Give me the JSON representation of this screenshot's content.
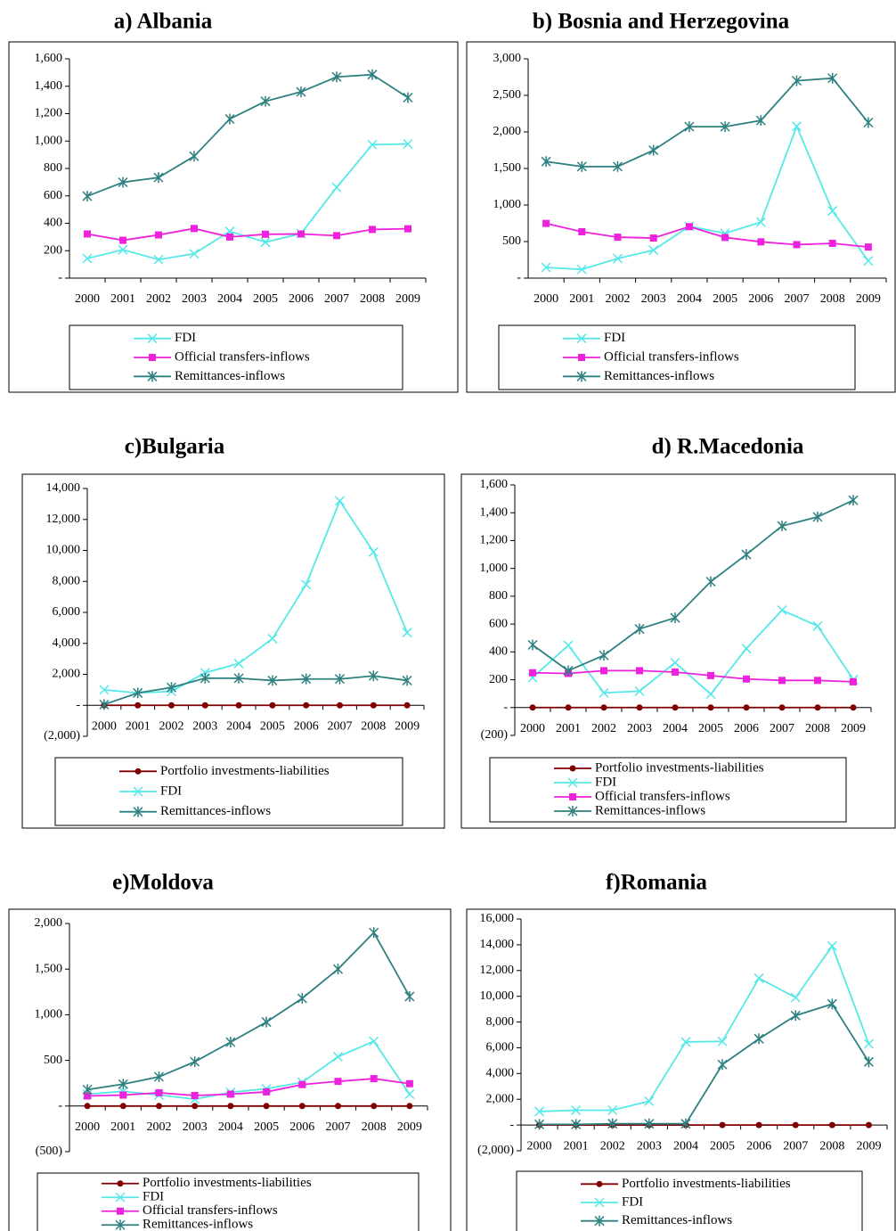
{
  "chart_data": [
    {
      "type": "line",
      "title": "a) Albania",
      "categories": [
        "2000",
        "2001",
        "2002",
        "2003",
        "2004",
        "2005",
        "2006",
        "2007",
        "2008",
        "2009"
      ],
      "ylim": [
        0,
        1600
      ],
      "yticks": [
        {
          "value": 0,
          "label": "-"
        },
        200,
        400,
        600,
        800,
        {
          "value": 1000,
          "label": "1,000"
        },
        {
          "value": 1200,
          "label": "1,200"
        },
        {
          "value": 1400,
          "label": "1,400"
        },
        {
          "value": 1600,
          "label": "1,600"
        }
      ],
      "series": [
        {
          "name": "FDI",
          "color": "#55e8e8",
          "marker": "x",
          "values": [
            143,
            207,
            135,
            178,
            341,
            262,
            325,
            662,
            974,
            979
          ]
        },
        {
          "name": "Official transfers-inflows",
          "color": "#ee22dd",
          "marker": "square",
          "values": [
            322,
            276,
            315,
            362,
            300,
            320,
            322,
            310,
            355,
            360
          ]
        },
        {
          "name": "Remittances-inflows",
          "color": "#2e8080",
          "marker": "asterisk",
          "values": [
            598,
            699,
            734,
            889,
            1161,
            1290,
            1359,
            1468,
            1485,
            1317
          ]
        }
      ]
    },
    {
      "type": "line",
      "title": "b) Bosnia and Herzegovina",
      "categories": [
        "2000",
        "2001",
        "2002",
        "2003",
        "2004",
        "2005",
        "2006",
        "2007",
        "2008",
        "2009"
      ],
      "ylim": [
        0,
        3000
      ],
      "yticks": [
        {
          "value": 0,
          "label": "-"
        },
        500,
        {
          "value": 1000,
          "label": "1,000"
        },
        {
          "value": 1500,
          "label": "1,500"
        },
        {
          "value": 2000,
          "label": "2,000"
        },
        {
          "value": 2500,
          "label": "2,500"
        },
        {
          "value": 3000,
          "label": "3,000"
        }
      ],
      "series": [
        {
          "name": "FDI",
          "color": "#55e8e8",
          "marker": "x",
          "values": [
            146,
            119,
            268,
            382,
            709,
            613,
            766,
            2076,
            920,
            235
          ]
        },
        {
          "name": "Official transfers-inflows",
          "color": "#ee22dd",
          "marker": "square",
          "values": [
            748,
            634,
            560,
            548,
            704,
            556,
            496,
            458,
            476,
            425
          ]
        },
        {
          "name": "Remittances-inflows",
          "color": "#2e8080",
          "marker": "asterisk",
          "values": [
            1595,
            1526,
            1526,
            1749,
            2072,
            2072,
            2157,
            2700,
            2735,
            2128
          ]
        }
      ]
    },
    {
      "type": "line",
      "title": "c)Bulgaria",
      "categories": [
        "2000",
        "2001",
        "2002",
        "2003",
        "2004",
        "2005",
        "2006",
        "2007",
        "2008",
        "2009"
      ],
      "ylim": [
        -2000,
        14000
      ],
      "yticks": [
        {
          "value": -2000,
          "label": "(2,000)"
        },
        {
          "value": 0,
          "label": "-"
        },
        {
          "value": 2000,
          "label": "2,000"
        },
        {
          "value": 4000,
          "label": "4,000"
        },
        {
          "value": 6000,
          "label": "6,000"
        },
        {
          "value": 8000,
          "label": "8,000"
        },
        {
          "value": 10000,
          "label": "10,000"
        },
        {
          "value": 12000,
          "label": "12,000"
        },
        {
          "value": 14000,
          "label": "14,000"
        }
      ],
      "series": [
        {
          "name": "Portfolio investments-liabilities",
          "color": "#800000",
          "marker": "circle",
          "values": [
            0,
            0,
            0,
            0,
            0,
            0,
            0,
            0,
            0,
            0
          ]
        },
        {
          "name": "FDI",
          "color": "#55e8e8",
          "marker": "x",
          "values": [
            1000,
            800,
            900,
            2100,
            2700,
            4300,
            7800,
            13200,
            9900,
            4700
          ]
        },
        {
          "name": "Remittances-inflows",
          "color": "#2e8080",
          "marker": "asterisk",
          "values": [
            50,
            800,
            1150,
            1750,
            1750,
            1600,
            1700,
            1700,
            1900,
            1600
          ]
        }
      ]
    },
    {
      "type": "line",
      "title": "d) R.Macedonia",
      "categories": [
        "2000",
        "2001",
        "2002",
        "2003",
        "2004",
        "2005",
        "2006",
        "2007",
        "2008",
        "2009"
      ],
      "ylim": [
        -200,
        1600
      ],
      "yticks": [
        {
          "value": -200,
          "label": "(200)"
        },
        {
          "value": 0,
          "label": "-"
        },
        200,
        400,
        600,
        800,
        {
          "value": 1000,
          "label": "1,000"
        },
        {
          "value": 1200,
          "label": "1,200"
        },
        {
          "value": 1400,
          "label": "1,400"
        },
        {
          "value": 1600,
          "label": "1,600"
        }
      ],
      "series": [
        {
          "name": "Portfolio investments-liabilities",
          "color": "#800000",
          "marker": "circle",
          "values": [
            0,
            0,
            0,
            0,
            0,
            0,
            0,
            0,
            0,
            0
          ]
        },
        {
          "name": "FDI",
          "color": "#55e8e8",
          "marker": "x",
          "values": [
            215,
            447,
            106,
            118,
            323,
            97,
            424,
            700,
            586,
            201
          ]
        },
        {
          "name": "Official transfers-inflows",
          "color": "#ee22dd",
          "marker": "square",
          "values": [
            250,
            245,
            265,
            265,
            255,
            230,
            205,
            195,
            195,
            185
          ]
        },
        {
          "name": "Remittances-inflows",
          "color": "#2e8080",
          "marker": "asterisk",
          "values": [
            450,
            265,
            375,
            565,
            645,
            905,
            1100,
            1305,
            1370,
            1490
          ]
        }
      ]
    },
    {
      "type": "line",
      "title": "e)Moldova",
      "categories": [
        "2000",
        "2001",
        "2002",
        "2003",
        "2004",
        "2005",
        "2006",
        "2007",
        "2008",
        "2009"
      ],
      "ylim": [
        -500,
        2000
      ],
      "yticks": [
        {
          "value": -500,
          "label": "(500)"
        },
        {
          "value": 0,
          "label": "-"
        },
        500,
        {
          "value": 1000,
          "label": "1,000"
        },
        {
          "value": 1500,
          "label": "1,500"
        },
        {
          "value": 2000,
          "label": "2,000"
        }
      ],
      "series": [
        {
          "name": "Portfolio investments-liabilities",
          "color": "#800000",
          "marker": "circle",
          "values": [
            0,
            0,
            0,
            0,
            0,
            0,
            0,
            0,
            0,
            0
          ]
        },
        {
          "name": "FDI",
          "color": "#55e8e8",
          "marker": "x",
          "values": [
            130,
            160,
            120,
            75,
            150,
            190,
            260,
            540,
            710,
            130
          ]
        },
        {
          "name": "Official transfers-inflows",
          "color": "#ee22dd",
          "marker": "square",
          "values": [
            110,
            120,
            145,
            115,
            130,
            155,
            235,
            270,
            300,
            245
          ]
        },
        {
          "name": "Remittances-inflows",
          "color": "#2e8080",
          "marker": "asterisk",
          "values": [
            180,
            240,
            320,
            485,
            700,
            920,
            1180,
            1500,
            1900,
            1200
          ]
        }
      ]
    },
    {
      "type": "line",
      "title": "f)Romania",
      "categories": [
        "2000",
        "2001",
        "2002",
        "2003",
        "2004",
        "2005",
        "2006",
        "2007",
        "2008",
        "2009"
      ],
      "ylim": [
        -2000,
        16000
      ],
      "yticks": [
        {
          "value": -2000,
          "label": "(2,000)"
        },
        {
          "value": 0,
          "label": "-"
        },
        {
          "value": 2000,
          "label": "2,000"
        },
        {
          "value": 4000,
          "label": "4,000"
        },
        {
          "value": 6000,
          "label": "6,000"
        },
        {
          "value": 8000,
          "label": "8,000"
        },
        {
          "value": 10000,
          "label": "10,000"
        },
        {
          "value": 12000,
          "label": "12,000"
        },
        {
          "value": 14000,
          "label": "14,000"
        },
        {
          "value": 16000,
          "label": "16,000"
        }
      ],
      "series": [
        {
          "name": "Portfolio investments-liabilities",
          "color": "#800000",
          "marker": "circle",
          "values": [
            0,
            0,
            0,
            0,
            0,
            0,
            0,
            0,
            0,
            0
          ]
        },
        {
          "name": "FDI",
          "color": "#55e8e8",
          "marker": "x",
          "values": [
            1050,
            1150,
            1150,
            1850,
            6450,
            6500,
            11400,
            9900,
            13900,
            6300
          ]
        },
        {
          "name": "Remittances-inflows",
          "color": "#2e8080",
          "marker": "asterisk",
          "values": [
            50,
            50,
            100,
            100,
            100,
            4700,
            6700,
            8500,
            9400,
            4900
          ]
        }
      ]
    }
  ]
}
